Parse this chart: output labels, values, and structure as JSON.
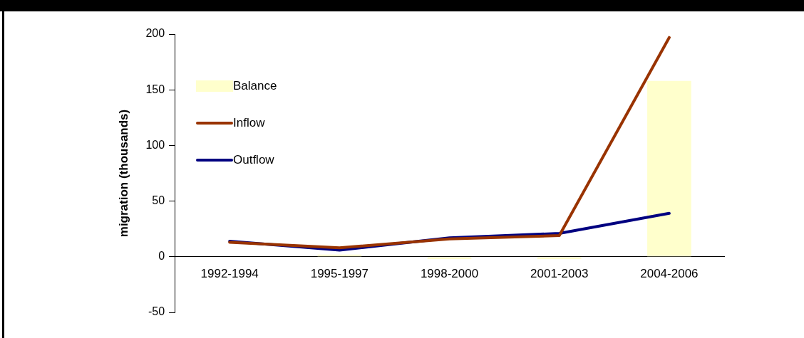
{
  "chart_data": {
    "type": "bar",
    "ylabel": "migration (thousands)",
    "categories": [
      "1992-1994",
      "1995-1997",
      "1998-2000",
      "2001-2003",
      "2004-2006"
    ],
    "series": [
      {
        "name": "Balance",
        "color": "#ffffcc",
        "values": [
          0,
          2,
          -2,
          -2,
          158
        ]
      },
      {
        "name": "Inflow",
        "type": "line",
        "color": "#993300",
        "values": [
          13,
          8,
          16,
          19,
          197
        ]
      },
      {
        "name": "Outflow",
        "type": "line",
        "color": "#000080",
        "values": [
          14,
          6,
          17,
          21,
          39
        ]
      }
    ],
    "ylim": [
      -50,
      200
    ],
    "yticks": [
      -50,
      0,
      50,
      100,
      150,
      200
    ],
    "grid": false,
    "legend": "top left",
    "marker": "none",
    "line_style": "solid"
  }
}
